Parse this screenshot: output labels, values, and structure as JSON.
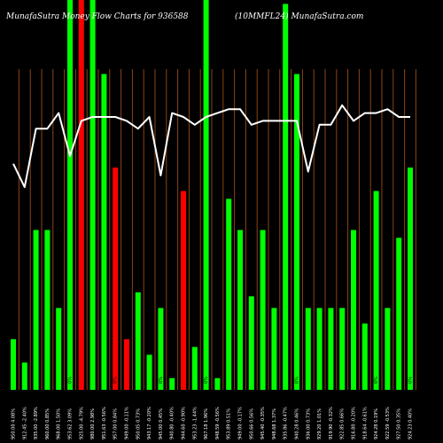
{
  "header": {
    "left": "MunafaSutra  Money Flow  Charts for 936588",
    "right": "(10MMFL24) MunafaSutra.com"
  },
  "chart_data": {
    "type": "bar",
    "ylim": [
      0,
      100
    ],
    "grid": "vertical",
    "colors": {
      "up": "#00ff00",
      "down": "#ff0000",
      "line": "#ffffff",
      "grid": "#8b4513",
      "background": "#000000"
    },
    "bars": [
      {
        "v": 13,
        "c": "up"
      },
      {
        "v": 7,
        "c": "up"
      },
      {
        "v": 41,
        "c": "up"
      },
      {
        "v": 41,
        "c": "up"
      },
      {
        "v": 21,
        "c": "up"
      },
      {
        "v": 100,
        "c": "up"
      },
      {
        "v": 100,
        "c": "down"
      },
      {
        "v": 100,
        "c": "up"
      },
      {
        "v": 81,
        "c": "up"
      },
      {
        "v": 57,
        "c": "down"
      },
      {
        "v": 13,
        "c": "down"
      },
      {
        "v": 25,
        "c": "up"
      },
      {
        "v": 9,
        "c": "up"
      },
      {
        "v": 21,
        "c": "up"
      },
      {
        "v": 3,
        "c": "up"
      },
      {
        "v": 51,
        "c": "down"
      },
      {
        "v": 11,
        "c": "up"
      },
      {
        "v": 100,
        "c": "up"
      },
      {
        "v": 3,
        "c": "up"
      },
      {
        "v": 49,
        "c": "up"
      },
      {
        "v": 41,
        "c": "up"
      },
      {
        "v": 24,
        "c": "up"
      },
      {
        "v": 41,
        "c": "up"
      },
      {
        "v": 21,
        "c": "up"
      },
      {
        "v": 99,
        "c": "up"
      },
      {
        "v": 81,
        "c": "up"
      },
      {
        "v": 21,
        "c": "up"
      },
      {
        "v": 21,
        "c": "up"
      },
      {
        "v": 21,
        "c": "up"
      },
      {
        "v": 21,
        "c": "up"
      },
      {
        "v": 41,
        "c": "up"
      },
      {
        "v": 17,
        "c": "up"
      },
      {
        "v": 51,
        "c": "up"
      },
      {
        "v": 21,
        "c": "up"
      },
      {
        "v": 39,
        "c": "up"
      },
      {
        "v": 57,
        "c": "up"
      }
    ],
    "line": [
      58,
      52,
      67,
      67,
      71,
      60,
      69,
      70,
      70,
      70,
      69,
      67,
      70,
      55,
      71,
      70,
      68,
      70,
      71,
      72,
      72,
      68,
      69,
      69,
      69,
      69,
      56,
      68,
      68,
      73,
      69,
      71,
      71,
      72,
      70,
      70
    ],
    "x_labels": [
      "950.00 4.08%",
      "912.45 -2.40%",
      "935.00 -2.89%",
      "960.00 0.85%",
      "968.00 1.50%",
      "953.62 3.09%",
      "925.00 -4.79%",
      "980.00 2.98%",
      "951.63 -0.56%",
      "957.00 0.84%",
      "949.00 -0.11%",
      "950.05 0.73%",
      "943.17 -0.20%",
      "945.00 0.45%",
      "940.80 -0.40%",
      "944.60 -0.90%",
      "953.23 -1.44%",
      "967.18 1.96%",
      "948.59 -0.56%",
      "953.89 0.51%",
      "949.00 -0.17%",
      "950.66 0.56%",
      "945.40 -0.35%",
      "948.68 1.37%",
      "935.86 -0.47%",
      "940.28 0.46%",
      "936.00 0.73%",
      "929.20 1.01%",
      "919.90 -0.32%",
      "922.85 0.66%",
      "916.80 -0.20%",
      "918.64 -0.61%",
      "924.28 0.19%",
      "922.59 -0.53%",
      "927.50 0.35%",
      "924.23 0.40%"
    ],
    "markers": [
      {
        "i": 5,
        "text": "0%"
      },
      {
        "i": 9,
        "text": "0%"
      },
      {
        "i": 13,
        "text": "0%"
      },
      {
        "i": 17,
        "text": "0%"
      },
      {
        "i": 25,
        "text": "0%"
      },
      {
        "i": 32,
        "text": "0%"
      },
      {
        "i": 35,
        "text": "0%"
      }
    ]
  }
}
